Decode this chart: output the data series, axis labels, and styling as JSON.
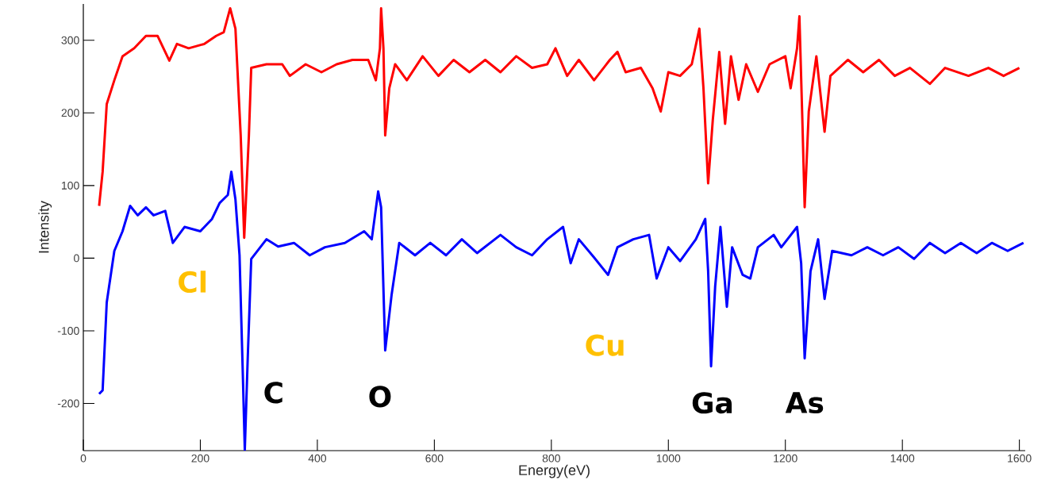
{
  "chart_data": {
    "type": "line",
    "xlabel": "Energy(eV)",
    "ylabel": "Intensity",
    "xlim": [
      0,
      1610
    ],
    "ylim": [
      -265,
      350
    ],
    "xticks": [
      0,
      200,
      400,
      600,
      800,
      1000,
      1200,
      1400,
      1600
    ],
    "yticks": [
      -200,
      -100,
      0,
      100,
      200,
      300
    ],
    "series": [
      {
        "color": "#ff0000",
        "x": [
          27,
          33,
          40,
          53,
          67,
          87,
          107,
          127,
          147,
          160,
          180,
          207,
          227,
          240,
          251,
          260,
          269,
          275,
          283,
          287,
          313,
          340,
          353,
          380,
          407,
          433,
          460,
          487,
          500,
          507,
          509,
          513,
          516,
          523,
          533,
          553,
          580,
          607,
          633,
          660,
          687,
          713,
          740,
          767,
          793,
          807,
          827,
          847,
          873,
          900,
          913,
          927,
          953,
          973,
          987,
          1000,
          1020,
          1040,
          1053,
          1060,
          1068,
          1076,
          1087,
          1097,
          1107,
          1120,
          1133,
          1153,
          1173,
          1200,
          1209,
          1220,
          1224,
          1229,
          1233,
          1240,
          1253,
          1267,
          1277,
          1307,
          1333,
          1360,
          1387,
          1413,
          1447,
          1473,
          1513,
          1547,
          1573,
          1600
        ],
        "values": [
          72,
          119,
          212,
          245,
          278,
          289,
          306,
          306,
          272,
          295,
          289,
          295,
          306,
          311,
          344,
          316,
          169,
          28,
          169,
          262,
          267,
          267,
          251,
          267,
          256,
          267,
          273,
          273,
          245,
          289,
          344,
          289,
          169,
          234,
          267,
          245,
          278,
          251,
          273,
          256,
          273,
          256,
          278,
          262,
          267,
          289,
          251,
          273,
          245,
          273,
          284,
          256,
          262,
          234,
          202,
          256,
          251,
          267,
          316,
          234,
          103,
          191,
          284,
          185,
          278,
          218,
          267,
          229,
          267,
          278,
          234,
          289,
          333,
          191,
          70,
          202,
          278,
          174,
          251,
          273,
          256,
          273,
          251,
          262,
          240,
          262,
          251,
          262,
          251,
          262
        ]
      },
      {
        "color": "#0000ff",
        "x": [
          27,
          33,
          40,
          53,
          67,
          80,
          93,
          107,
          120,
          140,
          153,
          173,
          200,
          220,
          233,
          247,
          253,
          260,
          267,
          273,
          276,
          281,
          287,
          313,
          333,
          360,
          387,
          413,
          447,
          480,
          493,
          504,
          509,
          516,
          527,
          540,
          567,
          593,
          620,
          647,
          673,
          713,
          740,
          767,
          793,
          820,
          833,
          847,
          873,
          897,
          913,
          940,
          967,
          980,
          1000,
          1020,
          1047,
          1063,
          1068,
          1073,
          1080,
          1089,
          1100,
          1109,
          1127,
          1140,
          1153,
          1180,
          1193,
          1220,
          1227,
          1233,
          1243,
          1256,
          1267,
          1280,
          1313,
          1340,
          1367,
          1393,
          1420,
          1447,
          1473,
          1500,
          1527,
          1553,
          1580,
          1607
        ],
        "values": [
          -187,
          -182,
          -61,
          10,
          37,
          72,
          59,
          70,
          59,
          65,
          21,
          43,
          37,
          54,
          76,
          87,
          119,
          81,
          4,
          -171,
          -264,
          -138,
          -1,
          26,
          16,
          21,
          4,
          15,
          21,
          37,
          26,
          92,
          70,
          -127,
          -50,
          21,
          4,
          21,
          4,
          26,
          7,
          32,
          15,
          4,
          26,
          43,
          -7,
          26,
          1,
          -23,
          15,
          26,
          32,
          -28,
          15,
          -4,
          26,
          54,
          -18,
          -149,
          -39,
          43,
          -67,
          15,
          -23,
          -28,
          15,
          32,
          15,
          43,
          -7,
          -138,
          -18,
          26,
          -56,
          10,
          4,
          15,
          4,
          15,
          -1,
          21,
          7,
          21,
          7,
          21,
          10,
          21
        ]
      }
    ],
    "annotations": [
      "Cl",
      "C",
      "O",
      "Cu",
      "Ga",
      "As"
    ]
  }
}
